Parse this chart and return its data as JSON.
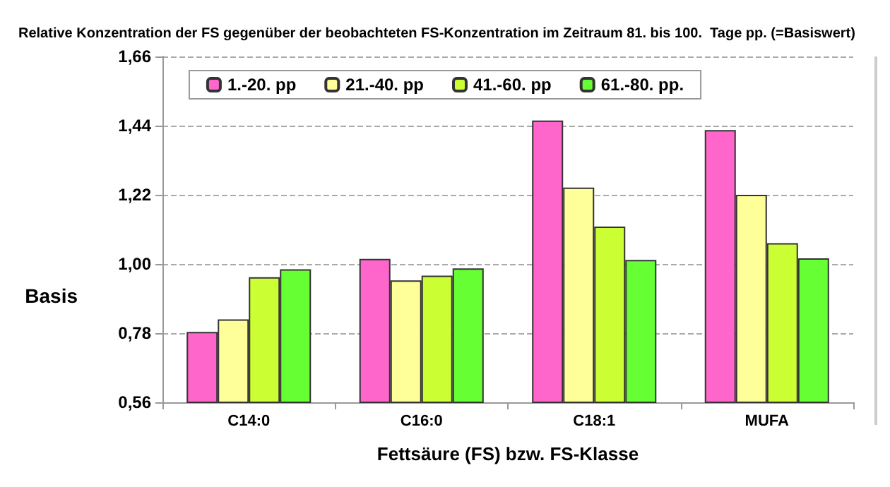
{
  "chart_data": {
    "type": "bar",
    "title": "Relative Konzentration der FS gegenüber der beobachteten FS-Konzentration im Zeitraum 81. bis 100.  Tage pp. (=Basiswert)",
    "xlabel": "Fettsäure (FS) bzw. FS-Klasse",
    "ylabel": "Basis",
    "categories": [
      "C14:0",
      "C16:0",
      "C18:1",
      "MUFA"
    ],
    "series": [
      {
        "name": "1.-20. pp",
        "color": "#ff66cc",
        "values": [
          0.784,
          1.016,
          1.456,
          1.426
        ]
      },
      {
        "name": "21.-40. pp",
        "color": "#ffff99",
        "values": [
          0.824,
          0.948,
          1.243,
          1.22
        ]
      },
      {
        "name": "41.-60. pp",
        "color": "#ccff33",
        "values": [
          0.958,
          0.963,
          1.119,
          1.066
        ]
      },
      {
        "name": "61.-80. pp.",
        "color": "#66ff33",
        "values": [
          0.983,
          0.986,
          1.013,
          1.018
        ]
      }
    ],
    "ylim": [
      0.56,
      1.66
    ],
    "yticks": [
      {
        "value": 0.56,
        "label": "0,56"
      },
      {
        "value": 0.78,
        "label": "0,78"
      },
      {
        "value": 1.0,
        "label": "1,00"
      },
      {
        "value": 1.22,
        "label": "1,22"
      },
      {
        "value": 1.44,
        "label": "1,44"
      },
      {
        "value": 1.66,
        "label": "1,66"
      }
    ],
    "grid": "y",
    "legend": "top"
  }
}
